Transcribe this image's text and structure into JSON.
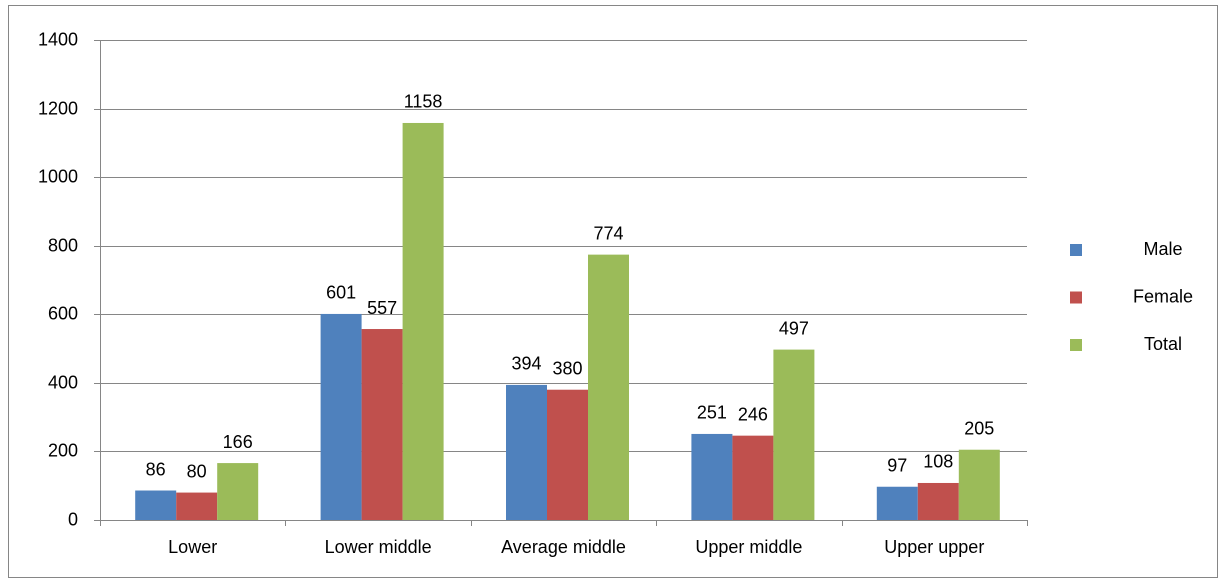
{
  "chart_data": {
    "type": "bar",
    "categories": [
      "Lower",
      "Lower middle",
      "Average middle",
      "Upper middle",
      "Upper upper"
    ],
    "series": [
      {
        "name": "Male",
        "color": "#4f81bd",
        "values": [
          86,
          601,
          394,
          251,
          97
        ]
      },
      {
        "name": "Female",
        "color": "#c0504d",
        "values": [
          80,
          557,
          380,
          246,
          108
        ]
      },
      {
        "name": "Total",
        "color": "#9bbb59",
        "values": [
          166,
          1158,
          774,
          497,
          205
        ]
      }
    ],
    "ylim": [
      0,
      1400
    ],
    "yticks": [
      0,
      200,
      400,
      600,
      800,
      1000,
      1200,
      1400
    ],
    "grid": true,
    "legend": "right"
  }
}
